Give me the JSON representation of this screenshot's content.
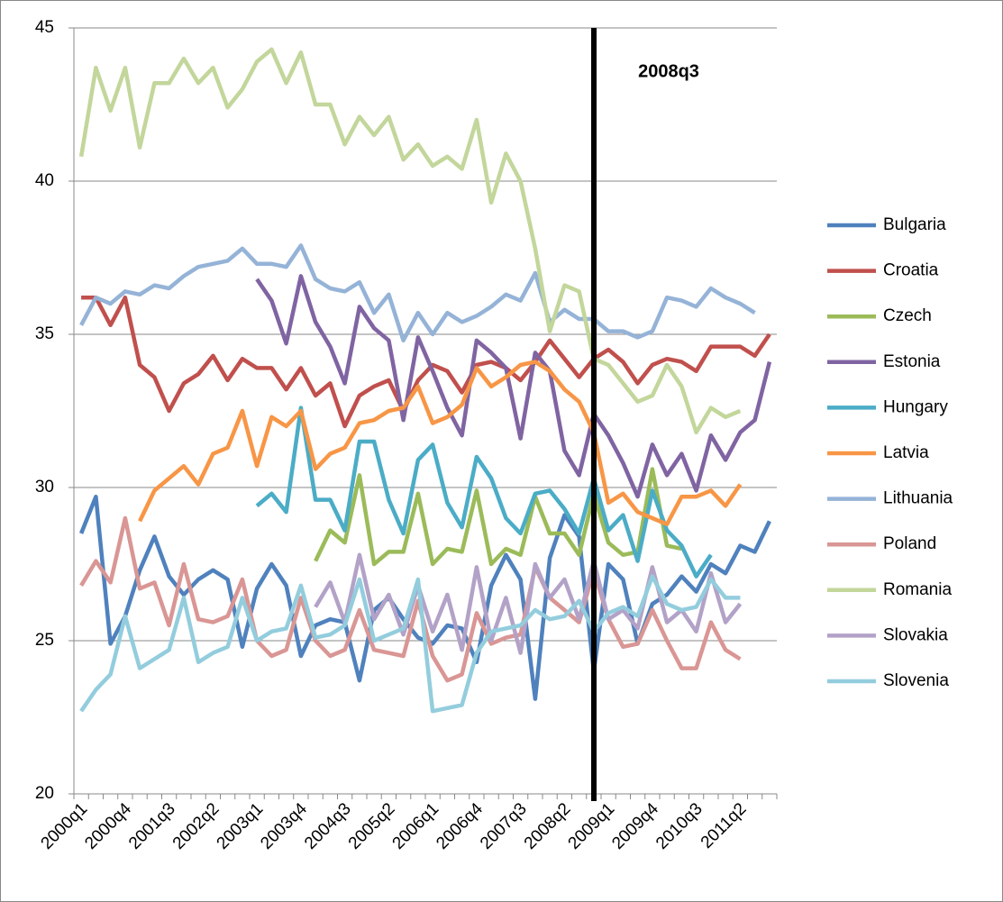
{
  "chart_data": {
    "type": "line",
    "annotation": "2008q3",
    "categories": [
      "2000q1",
      null,
      null,
      "2000q4",
      null,
      null,
      "2001q3",
      null,
      null,
      "2002q2",
      null,
      null,
      "2003q1",
      null,
      null,
      "2003q4",
      null,
      null,
      "2004q3",
      null,
      null,
      "2005q2",
      null,
      null,
      "2006q1",
      null,
      null,
      "2006q4",
      null,
      null,
      "2007q3",
      null,
      null,
      "2008q2",
      null,
      null,
      "2009q1",
      null,
      null,
      "2009q4",
      null,
      null,
      "2010q3",
      null,
      null,
      "2011q2",
      null,
      null
    ],
    "ylim": [
      20,
      45
    ],
    "yticks": [
      20,
      25,
      30,
      35,
      40,
      45
    ],
    "grid": true,
    "legend": "right",
    "series": [
      {
        "name": "Bulgaria",
        "color": "#4F81BD",
        "values": [
          28.5,
          29.7,
          24.9,
          25.8,
          27.3,
          28.4,
          27.1,
          26.5,
          27.0,
          27.3,
          27.0,
          24.8,
          26.7,
          27.5,
          26.8,
          24.5,
          25.5,
          25.7,
          25.6,
          23.7,
          26.0,
          26.4,
          25.7,
          25.1,
          24.9,
          25.5,
          25.4,
          24.3,
          26.8,
          27.8,
          27.0,
          23.1,
          27.7,
          29.1,
          28.4,
          24.0,
          27.5,
          27.0,
          24.9,
          26.2,
          26.5,
          27.1,
          26.6,
          27.5,
          27.2,
          28.1,
          27.9,
          28.9
        ]
      },
      {
        "name": "Croatia",
        "color": "#C0504D",
        "values": [
          36.2,
          36.2,
          35.3,
          36.2,
          34.0,
          33.6,
          32.5,
          33.4,
          33.7,
          34.3,
          33.5,
          34.2,
          33.9,
          33.9,
          33.2,
          33.9,
          33.0,
          33.4,
          32.0,
          33.0,
          33.3,
          33.5,
          32.5,
          33.5,
          34.0,
          33.8,
          33.1,
          34.0,
          34.1,
          33.9,
          33.5,
          34.1,
          34.8,
          34.2,
          33.6,
          34.2,
          34.5,
          34.1,
          33.4,
          34.0,
          34.2,
          34.1,
          33.8,
          34.6,
          34.6,
          34.6,
          34.3,
          35.0
        ]
      },
      {
        "name": "Czech",
        "color": "#9BBB59",
        "values": [
          null,
          null,
          null,
          null,
          null,
          null,
          null,
          null,
          null,
          null,
          null,
          null,
          null,
          null,
          null,
          null,
          27.6,
          28.6,
          28.2,
          30.4,
          27.5,
          27.9,
          27.9,
          29.8,
          27.5,
          28.0,
          27.9,
          29.9,
          27.5,
          28.0,
          27.8,
          29.7,
          28.5,
          28.5,
          27.8,
          29.8,
          28.2,
          27.8,
          27.9,
          30.6,
          28.1,
          28.0,
          null,
          null,
          null,
          null,
          null,
          null
        ]
      },
      {
        "name": "Estonia",
        "color": "#8064A2",
        "values": [
          null,
          null,
          null,
          null,
          null,
          null,
          null,
          null,
          null,
          null,
          null,
          null,
          36.8,
          36.1,
          34.7,
          36.9,
          35.4,
          34.6,
          33.4,
          35.9,
          35.2,
          34.8,
          32.2,
          34.9,
          33.8,
          32.6,
          31.7,
          34.8,
          34.4,
          33.9,
          31.6,
          34.4,
          33.8,
          31.2,
          30.4,
          32.4,
          31.7,
          30.8,
          29.7,
          31.4,
          30.4,
          31.1,
          29.9,
          31.7,
          30.9,
          31.8,
          32.2,
          34.1
        ]
      },
      {
        "name": "Hungary",
        "color": "#4BACC6",
        "values": [
          null,
          null,
          null,
          null,
          null,
          null,
          null,
          null,
          null,
          null,
          null,
          null,
          29.4,
          29.8,
          29.2,
          32.6,
          29.6,
          29.6,
          28.6,
          31.5,
          31.5,
          29.6,
          28.5,
          30.9,
          31.4,
          29.5,
          28.7,
          31.0,
          30.3,
          29.0,
          28.5,
          29.8,
          29.9,
          29.3,
          28.5,
          30.3,
          28.6,
          29.1,
          27.6,
          29.9,
          28.6,
          28.1,
          27.1,
          27.8,
          null,
          null,
          null,
          null
        ]
      },
      {
        "name": "Latvia",
        "color": "#F79646",
        "values": [
          null,
          null,
          null,
          null,
          28.9,
          29.9,
          30.3,
          30.7,
          30.1,
          31.1,
          31.3,
          32.5,
          30.7,
          32.3,
          32.0,
          32.5,
          30.6,
          31.1,
          31.3,
          32.1,
          32.2,
          32.5,
          32.6,
          33.3,
          32.1,
          32.3,
          32.7,
          33.9,
          33.3,
          33.6,
          34.0,
          34.1,
          33.8,
          33.2,
          32.8,
          31.8,
          29.5,
          29.8,
          29.2,
          29.0,
          28.8,
          29.7,
          29.7,
          29.9,
          29.4,
          30.1,
          null,
          null
        ]
      },
      {
        "name": "Lithuania",
        "color": "#95B3D7",
        "values": [
          35.3,
          36.2,
          36.0,
          36.4,
          36.3,
          36.6,
          36.5,
          36.9,
          37.2,
          37.3,
          37.4,
          37.8,
          37.3,
          37.3,
          37.2,
          37.9,
          36.8,
          36.5,
          36.4,
          36.7,
          35.7,
          36.3,
          34.8,
          35.7,
          35.0,
          35.7,
          35.4,
          35.6,
          35.9,
          36.3,
          36.1,
          37.0,
          35.4,
          35.8,
          35.5,
          35.5,
          35.1,
          35.1,
          34.9,
          35.1,
          36.2,
          36.1,
          35.9,
          36.5,
          36.2,
          36.0,
          35.7,
          null
        ]
      },
      {
        "name": "Poland",
        "color": "#D99694",
        "values": [
          26.8,
          27.6,
          26.9,
          29.0,
          26.7,
          26.9,
          25.5,
          27.5,
          25.7,
          25.6,
          25.8,
          27.0,
          25.0,
          24.5,
          24.7,
          26.4,
          25.0,
          24.5,
          24.7,
          26.0,
          24.7,
          24.6,
          24.5,
          26.3,
          24.5,
          23.7,
          23.9,
          25.9,
          24.9,
          25.1,
          25.2,
          27.4,
          26.4,
          26.0,
          25.6,
          27.3,
          25.7,
          24.8,
          24.9,
          26.0,
          25.0,
          24.1,
          24.1,
          25.6,
          24.7,
          24.4,
          null,
          null
        ]
      },
      {
        "name": "Romania",
        "color": "#C3D69B",
        "values": [
          40.8,
          43.7,
          42.3,
          43.7,
          41.1,
          43.2,
          43.2,
          44.0,
          43.2,
          43.7,
          42.4,
          43.0,
          43.9,
          44.3,
          43.2,
          44.2,
          42.5,
          42.5,
          41.2,
          42.1,
          41.5,
          42.1,
          40.7,
          41.2,
          40.5,
          40.8,
          40.4,
          42.0,
          39.3,
          40.9,
          40.0,
          37.8,
          35.1,
          36.6,
          36.4,
          34.2,
          34.0,
          33.4,
          32.8,
          33.0,
          34.0,
          33.3,
          31.8,
          32.6,
          32.3,
          32.5,
          null,
          null
        ]
      },
      {
        "name": "Slovakia",
        "color": "#B3A2C7",
        "values": [
          null,
          null,
          null,
          null,
          null,
          null,
          null,
          null,
          null,
          null,
          null,
          null,
          null,
          null,
          null,
          null,
          26.1,
          26.9,
          25.6,
          27.8,
          25.7,
          26.5,
          25.2,
          26.8,
          25.3,
          26.5,
          24.7,
          27.4,
          25.0,
          26.4,
          24.6,
          27.5,
          26.4,
          27.0,
          25.7,
          27.6,
          25.7,
          26.0,
          25.4,
          27.4,
          25.6,
          26.0,
          25.3,
          27.2,
          25.6,
          26.2,
          null,
          null
        ]
      },
      {
        "name": "Slovenia",
        "color": "#93CDDD",
        "values": [
          22.7,
          23.4,
          23.9,
          25.8,
          24.1,
          24.4,
          24.7,
          26.4,
          24.3,
          24.6,
          24.8,
          26.4,
          25.0,
          25.3,
          25.4,
          26.8,
          25.1,
          25.2,
          25.5,
          27.0,
          25.0,
          25.2,
          25.4,
          27.0,
          22.7,
          22.8,
          22.9,
          24.6,
          25.3,
          25.4,
          25.5,
          26.0,
          25.7,
          25.8,
          26.3,
          25.3,
          25.9,
          26.1,
          25.8,
          27.1,
          26.2,
          26.0,
          26.1,
          27.0,
          26.4,
          26.4,
          null,
          null
        ]
      }
    ]
  }
}
